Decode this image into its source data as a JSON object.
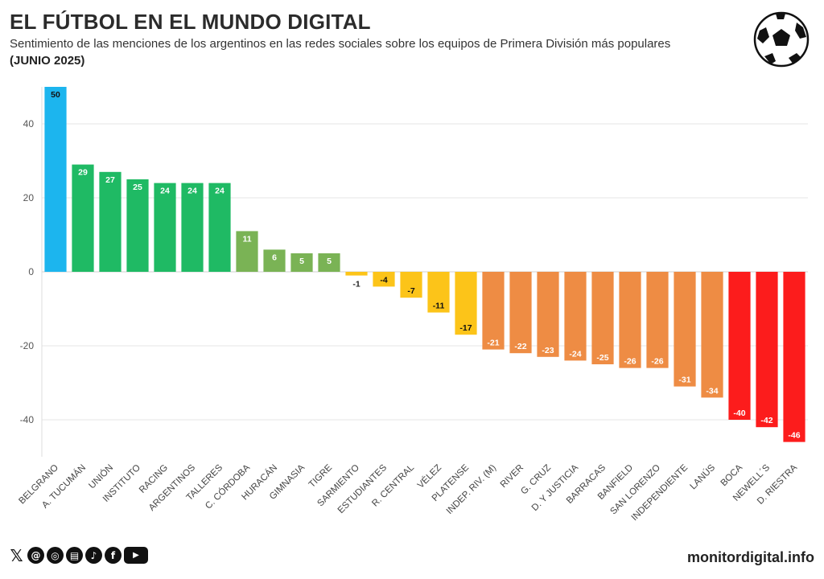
{
  "header": {
    "title": "EL FÚTBOL EN EL MUNDO DIGITAL",
    "subtitle": "Sentimiento de las menciones de los argentinos en las redes sociales sobre los equipos de Primera División más populares",
    "period": "(JUNIO 2025)"
  },
  "icons": {
    "ball": "soccer-ball-icon",
    "social": [
      "x-icon",
      "threads-icon",
      "instagram-icon",
      "podcast-icon",
      "tiktok-icon",
      "facebook-icon",
      "youtube-icon"
    ]
  },
  "footer": {
    "brand": "monitordigital.info"
  },
  "colors": {
    "blue": "#1cb5ee",
    "green": "#1fba64",
    "lightgreen": "#7ab355",
    "yellow": "#fcc419",
    "orange": "#ee8c44",
    "red": "#fc1c1c",
    "grid": "#e6e6e6"
  },
  "chart_data": {
    "type": "bar",
    "title": "EL FÚTBOL EN EL MUNDO DIGITAL",
    "xlabel": "",
    "ylabel": "",
    "ylim": [
      -50,
      50
    ],
    "yticks": [
      -40,
      -20,
      0,
      20,
      40
    ],
    "grid": true,
    "categories": [
      "BELGRANO",
      "A. TUCUMÁN",
      "UNIÓN",
      "INSTITUTO",
      "RACING",
      "ARGENTINOS",
      "TALLERES",
      "C. CÓRDOBA",
      "HURACÁN",
      "GIMNASIA",
      "TIGRE",
      "SARMIENTO",
      "ESTUDIANTES",
      "R. CENTRAL",
      "VÉLEZ",
      "PLATENSE",
      "INDEP. RIV. (M)",
      "RIVER",
      "G. CRUZ",
      "D. Y JUSTICIA",
      "BARRACAS",
      "BANFIELD",
      "SAN LORENZO",
      "INDEPENDIENTE",
      "LANÚS",
      "BOCA",
      "NEWELL´S",
      "D. RIESTRA"
    ],
    "values": [
      50,
      29,
      27,
      25,
      24,
      24,
      24,
      11,
      6,
      5,
      5,
      -1,
      -4,
      -7,
      -11,
      -17,
      -21,
      -22,
      -23,
      -24,
      -25,
      -26,
      -26,
      -31,
      -34,
      -40,
      -42,
      -46
    ],
    "color_groups": [
      "blue",
      "green",
      "green",
      "green",
      "green",
      "green",
      "green",
      "lightgreen",
      "lightgreen",
      "lightgreen",
      "lightgreen",
      "yellow",
      "yellow",
      "yellow",
      "yellow",
      "yellow",
      "orange",
      "orange",
      "orange",
      "orange",
      "orange",
      "orange",
      "orange",
      "orange",
      "orange",
      "red",
      "red",
      "red"
    ]
  }
}
